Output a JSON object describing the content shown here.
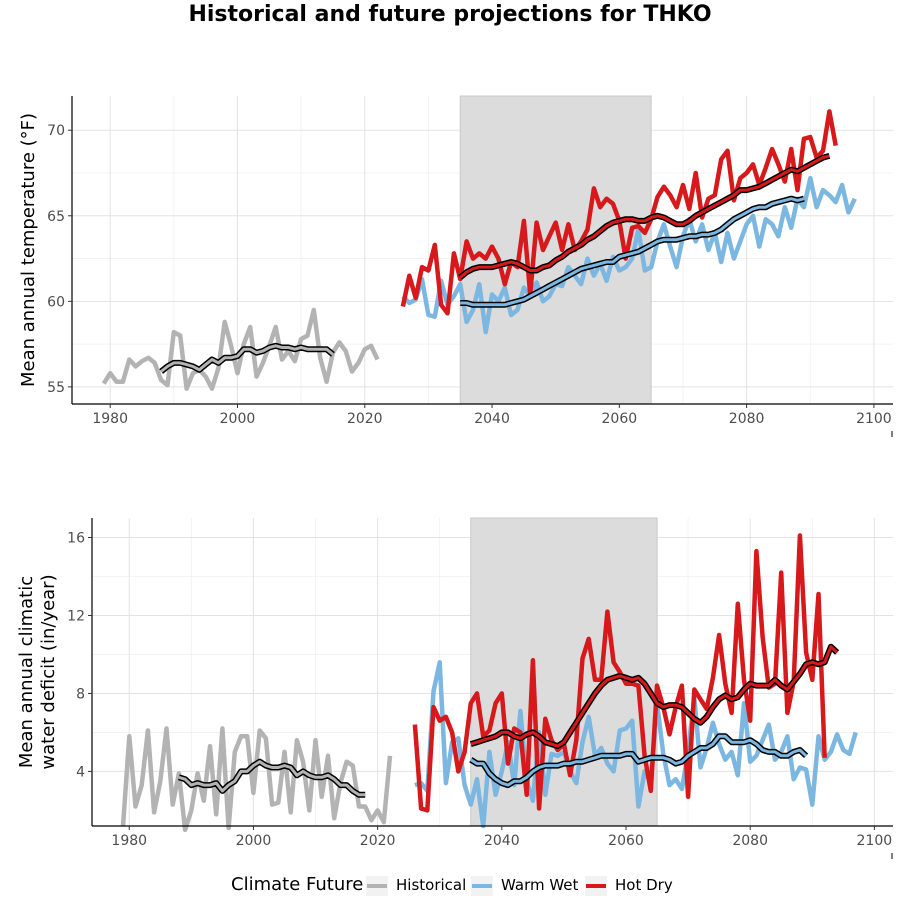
{
  "title": "Historical and future projections for THKO",
  "legend": {
    "title": "Climate Future",
    "items": [
      {
        "name": "Historical",
        "color": "#b3b3b3"
      },
      {
        "name": "Warm Wet",
        "color": "#7bb7e0"
      },
      {
        "name": "Hot Dry",
        "color": "#d7191c"
      }
    ]
  },
  "colors": {
    "historical": "#b3b3b3",
    "warm_wet": "#7bb7e0",
    "hot_dry": "#d7191c",
    "smooth": "#000000",
    "shade": "#dcdcdc"
  },
  "chart_data": [
    {
      "type": "line",
      "ylabel": "Mean annual temperature (°F)",
      "xlim": [
        1974,
        2103
      ],
      "ylim": [
        54,
        72
      ],
      "x_ticks": [
        1980,
        2000,
        2020,
        2040,
        2060,
        2080,
        2100
      ],
      "y_ticks": [
        55,
        60,
        65,
        70
      ],
      "shaded_period": [
        2035,
        2065
      ],
      "series": [
        {
          "name": "Historical",
          "x_start": 1979,
          "values": [
            55.2,
            55.8,
            55.3,
            55.3,
            56.6,
            56.2,
            56.5,
            56.7,
            56.4,
            55.4,
            55.1,
            58.2,
            58.0,
            54.9,
            55.8,
            56.0,
            55.6,
            54.9,
            56.1,
            58.8,
            57.4,
            55.8,
            57.5,
            58.5,
            55.6,
            56.4,
            57.4,
            58.5,
            56.6,
            57.1,
            56.5,
            57.8,
            58.0,
            59.5,
            56.7,
            55.3,
            57.0,
            57.6,
            57.1,
            55.9,
            56.4,
            57.2,
            57.4,
            56.6
          ]
        },
        {
          "name": "Historical (smoothed)",
          "x_start": 1988,
          "values": [
            55.9,
            56.2,
            56.4,
            56.4,
            56.3,
            56.2,
            56.0,
            56.3,
            56.6,
            56.4,
            56.7,
            56.7,
            56.8,
            57.2,
            57.2,
            57.0,
            57.1,
            57.3,
            57.4,
            57.3,
            57.3,
            57.2,
            57.3,
            57.2,
            57.2,
            57.2,
            57.2,
            56.9
          ]
        },
        {
          "name": "Warm Wet",
          "x_start": 2026,
          "values": [
            60.3,
            59.9,
            60.1,
            61.3,
            59.2,
            59.1,
            61.2,
            59.8,
            60.3,
            61.0,
            58.8,
            59.5,
            61.0,
            58.2,
            60.4,
            60.0,
            60.8,
            59.2,
            59.5,
            60.8,
            60.3,
            61.1,
            60.0,
            60.3,
            61.0,
            60.9,
            62.0,
            61.5,
            61.0,
            62.5,
            61.5,
            62.2,
            61.2,
            62.6,
            61.8,
            62.0,
            62.5,
            64.2,
            61.8,
            62.0,
            63.5,
            64.5,
            63.2,
            62.0,
            63.8,
            64.8,
            63.5,
            64.5,
            63.0,
            64.0,
            62.3,
            64.0,
            62.5,
            63.5,
            64.5,
            65.0,
            63.2,
            64.8,
            64.5,
            63.8,
            65.5,
            64.3,
            66.0,
            65.5,
            67.2,
            65.5,
            66.5,
            66.2,
            65.8,
            66.8,
            65.2,
            66.0
          ]
        },
        {
          "name": "Warm Wet (smoothed)",
          "x_start": 2035,
          "values": [
            59.9,
            59.9,
            59.8,
            59.8,
            59.8,
            59.8,
            59.8,
            59.8,
            59.9,
            60.0,
            60.1,
            60.3,
            60.5,
            60.7,
            60.9,
            61.1,
            61.3,
            61.5,
            61.7,
            61.9,
            62.0,
            62.1,
            62.2,
            62.3,
            62.3,
            62.6,
            62.7,
            62.8,
            62.9,
            63.1,
            63.3,
            63.5,
            63.6,
            63.6,
            63.6,
            63.7,
            63.8,
            63.8,
            63.9,
            63.9,
            64.0,
            64.2,
            64.5,
            64.8,
            65.0,
            65.2,
            65.4,
            65.5,
            65.5,
            65.7,
            65.8,
            65.9,
            66.0,
            65.9,
            66.0
          ]
        },
        {
          "name": "Hot Dry",
          "x_start": 2026,
          "values": [
            59.7,
            61.5,
            60.2,
            62.0,
            61.8,
            63.3,
            59.8,
            59.3,
            62.8,
            61.3,
            63.5,
            62.5,
            62.8,
            62.5,
            63.2,
            62.5,
            61.0,
            62.3,
            62.0,
            64.7,
            60.4,
            64.6,
            63.0,
            63.8,
            64.6,
            63.0,
            64.5,
            63.0,
            63.5,
            64.2,
            66.6,
            65.5,
            66.0,
            65.7,
            64.7,
            62.5,
            64.3,
            64.4,
            64.0,
            64.8,
            66.1,
            66.7,
            66.2,
            65.5,
            66.8,
            65.4,
            67.5,
            64.9,
            66.0,
            66.2,
            68.3,
            68.8,
            65.9,
            67.2,
            67.5,
            68.0,
            66.8,
            67.8,
            68.9,
            68.0,
            67.0,
            68.9,
            66.5,
            69.5,
            69.6,
            68.4,
            68.8,
            71.1,
            69.1
          ]
        },
        {
          "name": "Hot Dry (smoothed)",
          "x_start": 2035,
          "values": [
            61.4,
            61.7,
            61.9,
            62.0,
            62.0,
            62.0,
            62.1,
            62.2,
            62.3,
            62.2,
            62.0,
            61.8,
            61.8,
            62.0,
            62.1,
            62.4,
            62.6,
            62.9,
            63.1,
            63.3,
            63.6,
            63.8,
            64.1,
            64.4,
            64.6,
            64.7,
            64.8,
            64.8,
            64.7,
            64.7,
            64.9,
            65.0,
            64.9,
            64.7,
            64.5,
            64.5,
            64.7,
            65.0,
            65.2,
            65.4,
            65.6,
            65.8,
            66.0,
            66.2,
            66.5,
            66.5,
            66.6,
            66.7,
            66.9,
            67.1,
            67.3,
            67.5,
            67.7,
            67.6,
            67.8,
            68.0,
            68.2,
            68.4,
            68.5
          ]
        }
      ]
    },
    {
      "type": "line",
      "ylabel": "Mean annual climatic water deficit (in/year)",
      "ylabel_lines": [
        "Mean annual climatic",
        "water deficit (in/year)"
      ],
      "xlim": [
        1974,
        2103
      ],
      "ylim": [
        1.2,
        17
      ],
      "x_ticks": [
        1980,
        2000,
        2020,
        2040,
        2060,
        2080,
        2100
      ],
      "y_ticks": [
        4,
        8,
        12,
        16
      ],
      "shaded_period": [
        2035,
        2065
      ],
      "series": [
        {
          "name": "Historical",
          "x_start": 1979,
          "values": [
            1.2,
            5.8,
            2.2,
            3.3,
            6.1,
            1.9,
            3.5,
            6.2,
            2.3,
            3.9,
            1.0,
            2.0,
            3.9,
            2.5,
            5.3,
            1.8,
            6.2,
            1.1,
            5.0,
            5.8,
            5.8,
            2.9,
            6.1,
            5.7,
            2.3,
            2.4,
            5.0,
            1.9,
            5.6,
            4.5,
            2.0,
            5.6,
            2.7,
            4.8,
            1.6,
            3.4,
            4.5,
            4.3,
            2.2,
            2.2,
            1.5,
            2.0,
            1.4,
            4.8
          ]
        },
        {
          "name": "Historical (smoothed)",
          "x_start": 1988,
          "values": [
            3.7,
            3.6,
            3.3,
            3.4,
            3.3,
            3.3,
            3.4,
            3.0,
            3.3,
            3.5,
            4.0,
            4.0,
            4.3,
            4.5,
            4.3,
            4.2,
            4.2,
            4.3,
            4.2,
            3.8,
            4.0,
            3.8,
            3.7,
            3.7,
            3.8,
            3.6,
            3.3,
            3.3,
            3.0,
            2.8,
            2.8
          ]
        },
        {
          "name": "Warm Wet",
          "x_start": 2026,
          "values": [
            3.3,
            3.4,
            3.0,
            8.1,
            9.6,
            3.4,
            5.5,
            5.7,
            3.3,
            2.3,
            3.6,
            1.2,
            5.0,
            2.8,
            4.0,
            5.5,
            3.3,
            7.1,
            3.5,
            2.5,
            6.0,
            2.8,
            4.9,
            4.8,
            5.0,
            4.0,
            3.4,
            5.5,
            6.8,
            4.8,
            5.2,
            4.4,
            4.0,
            6.1,
            6.2,
            6.6,
            2.2,
            4.0,
            3.4,
            7.5,
            4.9,
            3.3,
            3.6,
            3.1,
            5.0,
            7.8,
            4.2,
            5.2,
            6.5,
            5.4,
            4.6,
            5.0,
            3.8,
            7.5,
            4.5,
            4.8,
            5.6,
            6.4,
            4.6,
            5.0,
            5.8,
            3.6,
            4.2,
            4.1,
            2.3,
            5.8,
            4.6,
            5.0,
            5.9,
            5.1,
            4.9,
            6.0
          ]
        },
        {
          "name": "Warm Wet (smoothed)",
          "x_start": 2035,
          "values": [
            4.6,
            4.4,
            4.4,
            3.9,
            3.6,
            3.4,
            3.3,
            3.5,
            3.5,
            3.7,
            4.0,
            4.2,
            4.3,
            4.3,
            4.3,
            4.4,
            4.4,
            4.5,
            4.5,
            4.6,
            4.7,
            4.8,
            4.8,
            4.8,
            4.8,
            4.9,
            4.9,
            4.5,
            4.6,
            4.7,
            4.7,
            4.7,
            4.6,
            4.4,
            4.5,
            4.8,
            5.0,
            5.2,
            5.2,
            5.4,
            5.8,
            5.8,
            5.5,
            5.5,
            5.5,
            5.6,
            5.4,
            5.1,
            5.0,
            5.0,
            4.8,
            4.8,
            5.0,
            5.1,
            4.8
          ]
        },
        {
          "name": "Hot Dry",
          "x_start": 2026,
          "values": [
            6.4,
            2.1,
            2.0,
            7.3,
            6.6,
            6.8,
            6.0,
            4.0,
            5.0,
            7.5,
            8.0,
            5.8,
            6.1,
            7.5,
            8.0,
            4.4,
            6.2,
            6.0,
            2.8,
            9.7,
            2.1,
            6.7,
            5.6,
            5.1,
            5.4,
            3.8,
            5.6,
            9.8,
            10.8,
            8.7,
            8.7,
            12.2,
            9.6,
            9.1,
            8.5,
            8.5,
            8.4,
            4.8,
            3.0,
            8.4,
            7.3,
            5.9,
            7.3,
            8.4,
            2.7,
            8.2,
            7.7,
            7.2,
            8.8,
            11.0,
            8.5,
            7.0,
            12.6,
            8.7,
            6.6,
            15.3,
            10.9,
            8.3,
            8.5,
            14.2,
            7.0,
            8.6,
            16.1,
            10.1,
            8.7,
            13.1,
            4.7
          ]
        },
        {
          "name": "Hot Dry (smoothed)",
          "x_start": 2035,
          "values": [
            5.4,
            5.5,
            5.6,
            5.7,
            5.8,
            6.0,
            6.0,
            5.8,
            5.7,
            5.9,
            6.0,
            5.8,
            5.5,
            5.4,
            5.3,
            5.5,
            6.0,
            6.5,
            7.0,
            7.5,
            8.0,
            8.4,
            8.7,
            8.8,
            8.9,
            8.8,
            8.7,
            8.8,
            8.5,
            8.0,
            7.5,
            7.3,
            7.4,
            7.4,
            7.3,
            7.0,
            6.7,
            6.5,
            6.8,
            7.3,
            7.7,
            7.9,
            7.7,
            7.8,
            8.2,
            8.5,
            8.4,
            8.4,
            8.4,
            8.7,
            8.4,
            8.2,
            8.6,
            9.0,
            9.5,
            9.6,
            9.5,
            9.6,
            10.4,
            10.1
          ]
        }
      ]
    }
  ]
}
